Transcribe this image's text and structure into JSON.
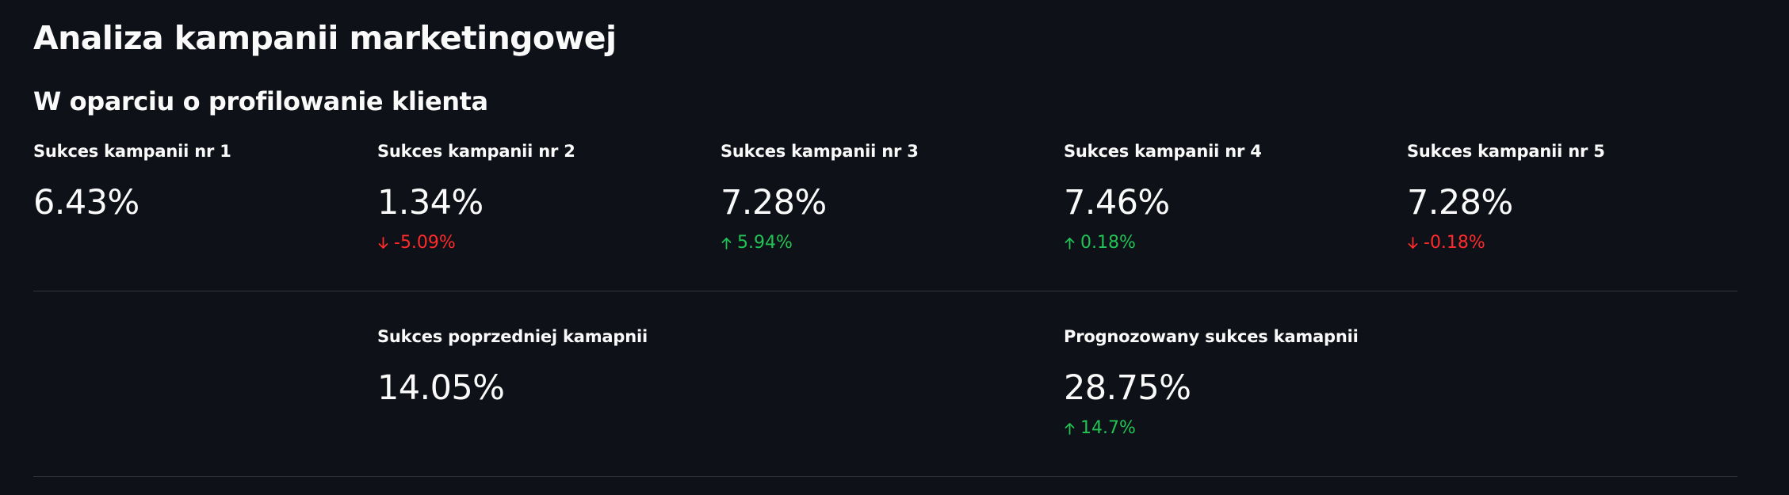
{
  "header": {
    "title": "Analiza kampanii marketingowej",
    "subtitle": "W oparciu o profilowanie klienta"
  },
  "metrics_row1": [
    {
      "label": "Sukces kampanii nr 1",
      "value": "6.43%",
      "delta": "",
      "delta_direction": "none"
    },
    {
      "label": "Sukces kampanii nr 2",
      "value": "1.34%",
      "delta": "-5.09%",
      "delta_direction": "down"
    },
    {
      "label": "Sukces kampanii nr 3",
      "value": "7.28%",
      "delta": "5.94%",
      "delta_direction": "up"
    },
    {
      "label": "Sukces kampanii nr 4",
      "value": "7.46%",
      "delta": "0.18%",
      "delta_direction": "up"
    },
    {
      "label": "Sukces kampanii nr 5",
      "value": "7.28%",
      "delta": "-0.18%",
      "delta_direction": "down"
    }
  ],
  "metrics_row2": [
    {
      "label": "Sukces poprzedniej kamapnii",
      "value": "14.05%",
      "delta": "",
      "delta_direction": "none"
    },
    {
      "label": "Prognozowany sukces kamapnii",
      "value": "28.75%",
      "delta": "14.7%",
      "delta_direction": "up"
    }
  ],
  "colors": {
    "background": "#0e1117",
    "text": "#fafafa",
    "delta_up": "#21c354",
    "delta_down": "#ff2b2b",
    "divider": "#31333f"
  }
}
